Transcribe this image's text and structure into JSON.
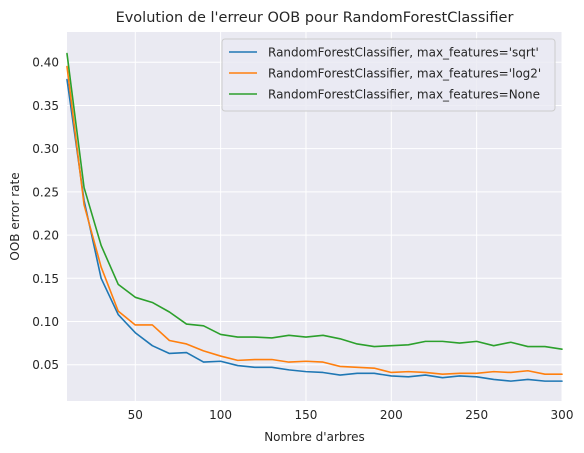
{
  "chart_data": {
    "type": "line",
    "title": "Evolution de l'erreur OOB pour RandomForestClassifier",
    "xlabel": "Nombre d'arbres",
    "ylabel": "OOB error rate",
    "xlim": [
      10,
      300
    ],
    "ylim": [
      0.008,
      0.435
    ],
    "xticks": [
      50,
      100,
      150,
      200,
      250,
      300
    ],
    "yticks": [
      0.05,
      0.1,
      0.15,
      0.2,
      0.25,
      0.3,
      0.35,
      0.4
    ],
    "ytick_labels": [
      "0.05",
      "0.10",
      "0.15",
      "0.20",
      "0.25",
      "0.30",
      "0.35",
      "0.40"
    ],
    "grid": true,
    "legend_position": "top-right",
    "x": [
      10,
      20,
      30,
      40,
      50,
      60,
      70,
      80,
      90,
      100,
      110,
      120,
      130,
      140,
      150,
      160,
      170,
      180,
      190,
      200,
      210,
      220,
      230,
      240,
      250,
      260,
      270,
      280,
      290,
      300
    ],
    "series": [
      {
        "name": "RandomForestClassifier, max_features='sqrt'",
        "color": "#1f77b4",
        "values": [
          0.38,
          0.24,
          0.15,
          0.108,
          0.087,
          0.072,
          0.063,
          0.064,
          0.053,
          0.054,
          0.049,
          0.047,
          0.047,
          0.044,
          0.042,
          0.041,
          0.038,
          0.04,
          0.04,
          0.037,
          0.036,
          0.038,
          0.035,
          0.037,
          0.036,
          0.033,
          0.031,
          0.033,
          0.031,
          0.031
        ]
      },
      {
        "name": "RandomForestClassifier, max_features='log2'",
        "color": "#ff7f0e",
        "values": [
          0.395,
          0.235,
          0.163,
          0.112,
          0.096,
          0.096,
          0.078,
          0.074,
          0.066,
          0.06,
          0.055,
          0.056,
          0.056,
          0.053,
          0.054,
          0.053,
          0.048,
          0.047,
          0.046,
          0.041,
          0.042,
          0.041,
          0.039,
          0.04,
          0.04,
          0.042,
          0.041,
          0.043,
          0.039,
          0.039
        ]
      },
      {
        "name": "RandomForestClassifier, max_features=None",
        "color": "#2ca02c",
        "values": [
          0.41,
          0.255,
          0.188,
          0.143,
          0.128,
          0.122,
          0.111,
          0.097,
          0.095,
          0.085,
          0.082,
          0.082,
          0.081,
          0.084,
          0.082,
          0.084,
          0.08,
          0.074,
          0.071,
          0.072,
          0.073,
          0.077,
          0.077,
          0.075,
          0.077,
          0.072,
          0.076,
          0.071,
          0.071,
          0.068
        ]
      }
    ]
  }
}
